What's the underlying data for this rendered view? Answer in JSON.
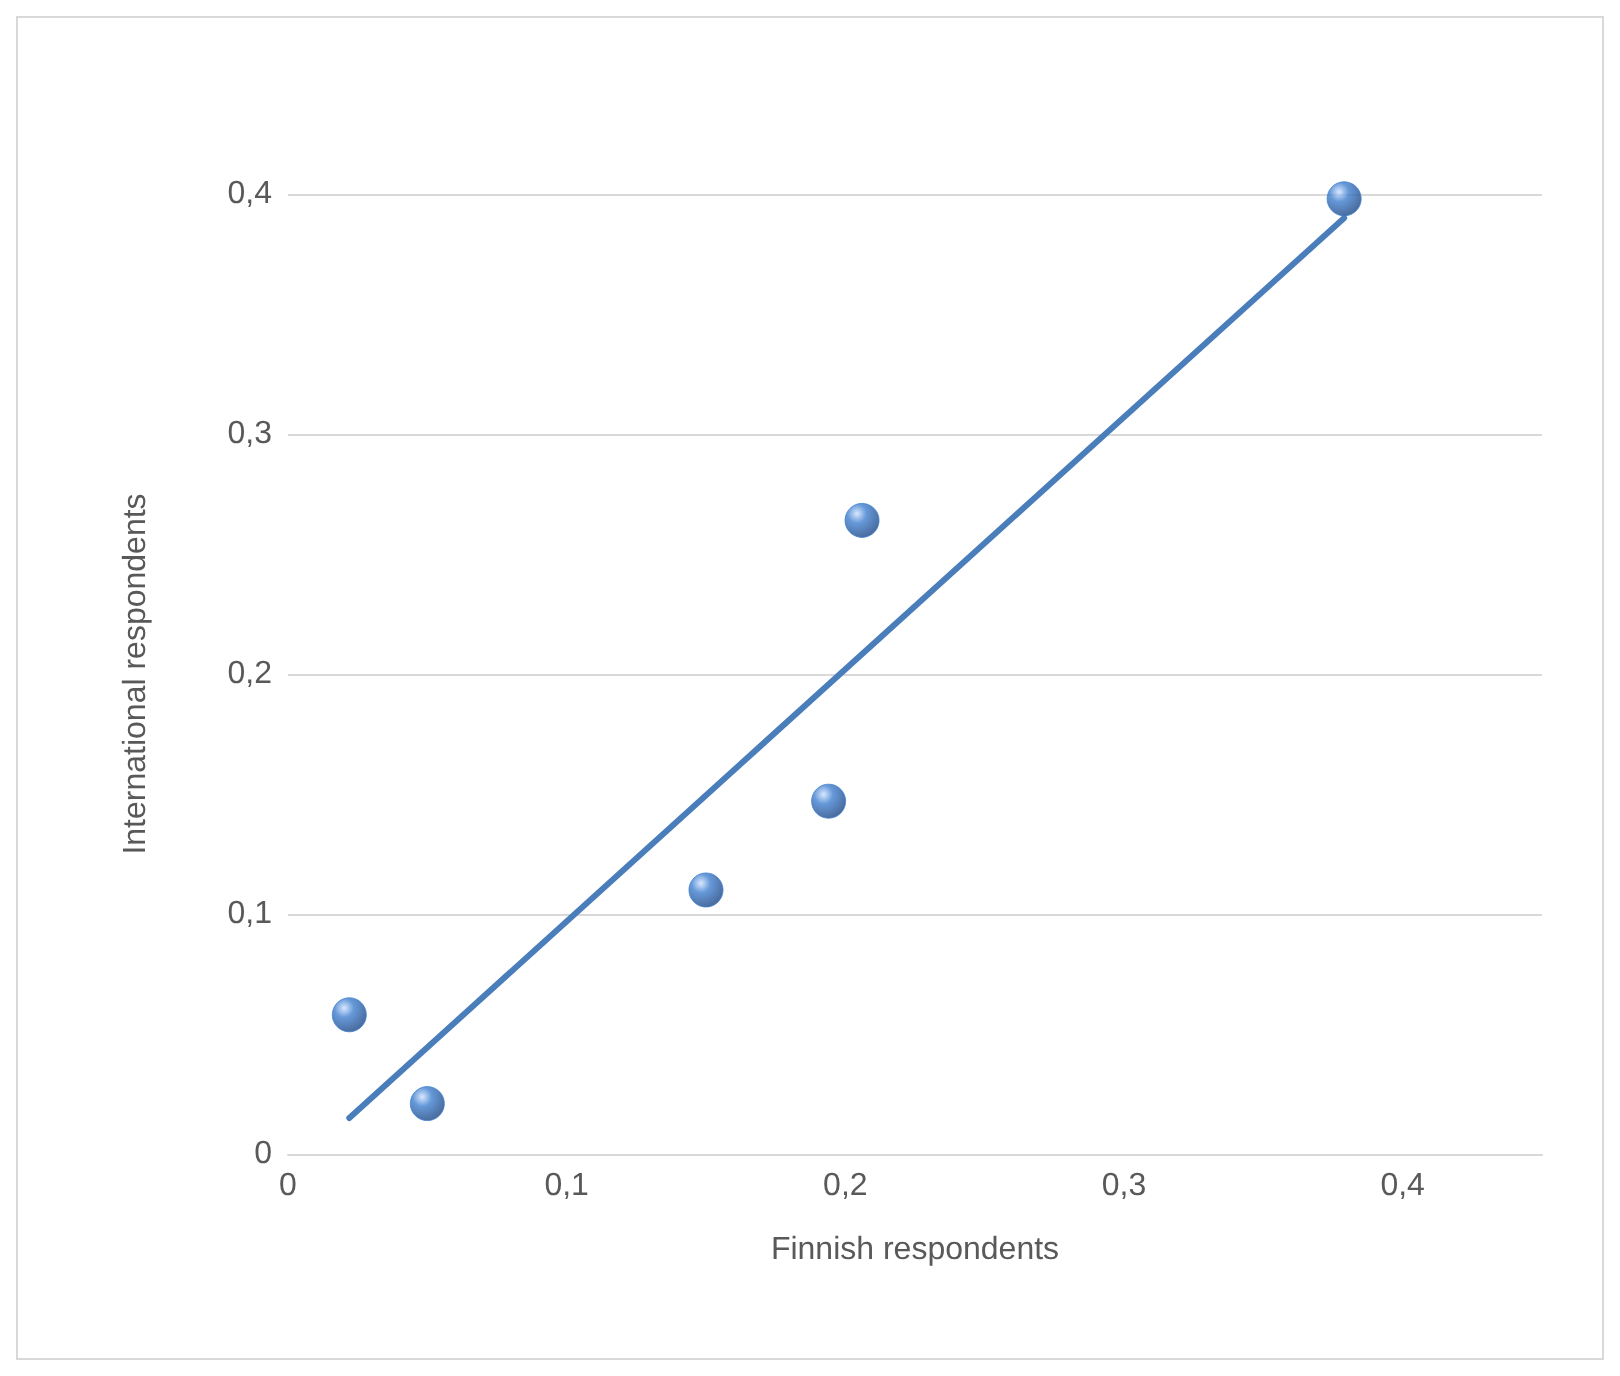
{
  "chart_data": {
    "type": "scatter",
    "xlabel": "Finnish respondents",
    "ylabel": "International respondents",
    "x": [
      0.022,
      0.05,
      0.15,
      0.194,
      0.206,
      0.379
    ],
    "series": [
      {
        "marker": "circle",
        "color": "#3f7fcf",
        "values": [
          0.058,
          0.021,
          0.11,
          0.147,
          0.264,
          0.398
        ]
      },
      {
        "type": "line",
        "marker": "none",
        "color": "#4a7ebb",
        "x": [
          0.022,
          0.379
        ],
        "values": [
          0.015,
          0.39
        ]
      }
    ],
    "xlim": [
      0,
      0.45
    ],
    "ylim": [
      0,
      0.4
    ],
    "xticks": [
      0,
      {
        "value": 0.1,
        "label": "0,1"
      },
      {
        "value": 0.2,
        "label": "0,2"
      },
      {
        "value": 0.3,
        "label": "0,3"
      },
      {
        "value": 0.4,
        "label": "0,4"
      }
    ],
    "yticks": [
      0,
      {
        "value": 0.1,
        "label": "0,1"
      },
      {
        "value": 0.2,
        "label": "0,2"
      },
      {
        "value": 0.3,
        "label": "0,3"
      },
      {
        "value": 0.4,
        "label": "0,4"
      }
    ],
    "grid": "y",
    "line_style": "solid"
  }
}
